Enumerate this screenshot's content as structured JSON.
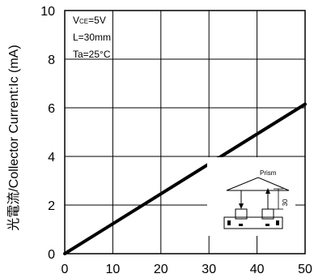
{
  "chart_data": {
    "type": "line",
    "ylabel": "光電流/Collector Current:Ic (mA)",
    "xlim": [
      0,
      50
    ],
    "ylim": [
      0,
      10
    ],
    "x_ticks": [
      0,
      10,
      20,
      30,
      40,
      50
    ],
    "y_ticks": [
      0,
      2,
      4,
      6,
      8,
      10
    ],
    "grid": true,
    "series": [
      {
        "x": [
          0,
          50
        ],
        "y": [
          0,
          6.15
        ]
      }
    ],
    "conditions": {
      "vce_prefix": "V",
      "vce_sub": "CE",
      "vce_value": "=5V",
      "l": "L=30mm",
      "ta": "Ta=25°C"
    },
    "inset": {
      "label": "Prism",
      "dimension": "30"
    }
  }
}
